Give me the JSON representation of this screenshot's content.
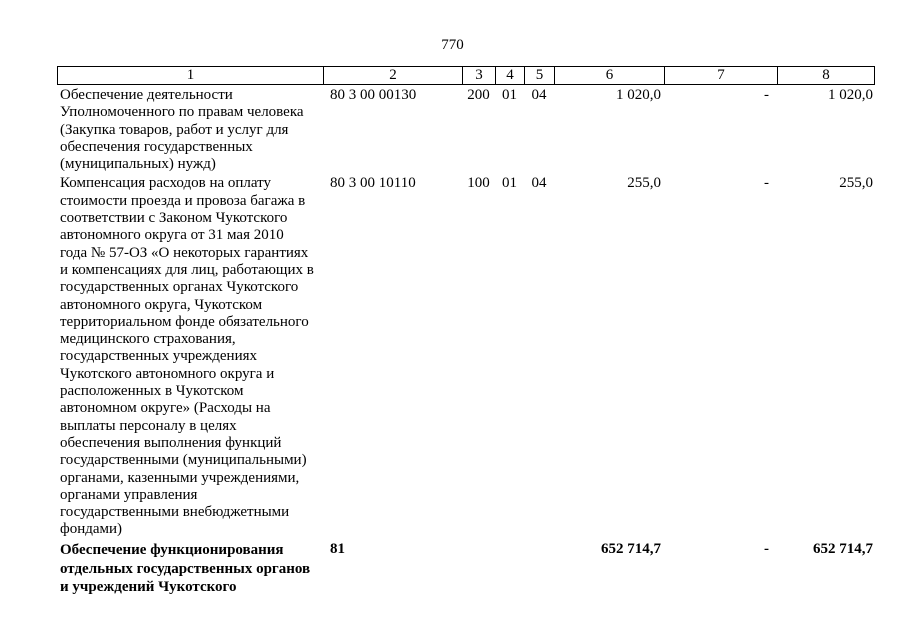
{
  "page": {
    "number": "770"
  },
  "table": {
    "header_cols": [
      "1",
      "2",
      "3",
      "4",
      "5",
      "6",
      "7",
      "8"
    ],
    "rows": [
      {
        "description": "Обеспечение деятельности\nУполномоченного по правам человека\n(Закупка товаров, работ и услуг для\nобеспечения государственных\n(муниципальных) нужд)",
        "code": "80 3 00 00130",
        "expense_type": "200",
        "section": "01",
        "subsection": "04",
        "amount": "1 020,0",
        "amount2": "-",
        "amount3": "1 020,0"
      },
      {
        "description": "Компенсация расходов на оплату\nстоимости проезда и провоза багажа в\nсоответствии с Законом Чукотского\nавтономного округа от 31 мая 2010\nгода № 57-ОЗ «О некоторых гарантиях\nи компенсациях для лиц, работающих в\nгосударственных органах Чукотского\nавтономного округа, Чукотском\nтерриториальном фонде обязательного\nмедицинского страхования,\nгосударственных учреждениях\nЧукотского автономного округа и\nрасположенных в Чукотском\nавтономном округе» (Расходы на\nвыплаты персоналу в целях\nобеспечения выполнения функций\nгосударственными (муниципальными)\nорганами, казенными учреждениями,\nорганами управления\nгосударственными внебюджетными\nфондами)",
        "code": "80 3 00 10110",
        "expense_type": "100",
        "section": "01",
        "subsection": "04",
        "amount": "255,0",
        "amount2": "-",
        "amount3": "255,0"
      },
      {
        "description": "Обеспечение функционирования\nотдельных государственных органов\nи учреждений Чукотского",
        "code": "81",
        "expense_type": "",
        "section": "",
        "subsection": "",
        "amount": "652 714,7",
        "amount2": "-",
        "amount3": "652 714,7"
      }
    ]
  }
}
